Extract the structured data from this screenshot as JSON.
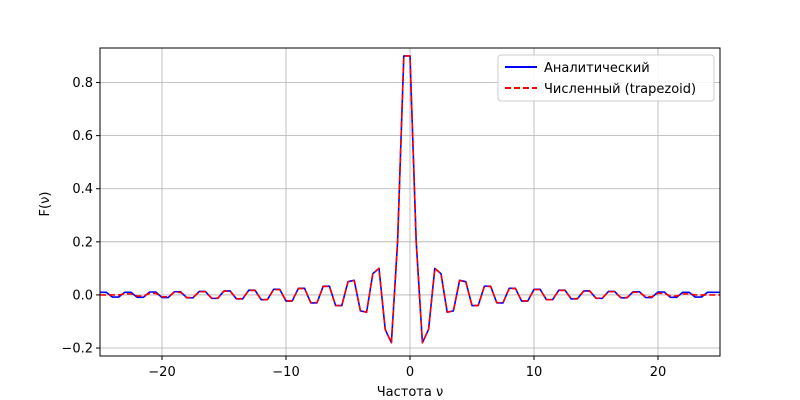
{
  "chart_data": {
    "type": "line",
    "title": "",
    "xlabel": "Частота ν",
    "ylabel": "F(ν)",
    "xlim": [
      -25,
      25
    ],
    "ylim": [
      -0.23,
      0.93
    ],
    "xticks": [
      -20,
      -10,
      0,
      10,
      20
    ],
    "xtick_labels": [
      "−20",
      "−10",
      "0",
      "10",
      "20"
    ],
    "yticks": [
      -0.2,
      0.0,
      0.2,
      0.4,
      0.6,
      0.8
    ],
    "ytick_labels": [
      "−0.2",
      "0.0",
      "0.2",
      "0.4",
      "0.6",
      "0.8"
    ],
    "grid": true,
    "legend_position": "top-right",
    "series": [
      {
        "name": "Аналитический",
        "color": "#0000ff",
        "style": "solid",
        "x": [
          -25,
          -24.5,
          -24,
          -23.5,
          -23,
          -22.5,
          -22,
          -21.5,
          -21,
          -20.5,
          -20,
          -19.5,
          -19,
          -18.5,
          -18,
          -17.5,
          -17,
          -16.5,
          -16,
          -15.5,
          -15,
          -14.5,
          -14,
          -13.5,
          -13,
          -12.5,
          -12,
          -11.5,
          -11,
          -10.5,
          -10,
          -9.5,
          -9,
          -8.5,
          -8,
          -7.5,
          -7,
          -6.5,
          -6,
          -5.5,
          -5,
          -4.5,
          -4,
          -3.5,
          -3,
          -2.5,
          -2,
          -1.5,
          -1,
          -0.5,
          0,
          0.5,
          1,
          1.5,
          2,
          2.5,
          3,
          3.5,
          4,
          4.5,
          5,
          5.5,
          6,
          6.5,
          7,
          7.5,
          8,
          8.5,
          9,
          9.5,
          10,
          10.5,
          11,
          11.5,
          12,
          12.5,
          13,
          13.5,
          14,
          14.5,
          15,
          15.5,
          16,
          16.5,
          17,
          17.5,
          18,
          18.5,
          19,
          19.5,
          20,
          20.5,
          21,
          21.5,
          22,
          22.5,
          23,
          23.5,
          24,
          24.5,
          25
        ],
        "y": [
          0.01,
          0.01,
          -0.008,
          -0.008,
          0.01,
          0.01,
          -0.009,
          -0.009,
          0.011,
          0.011,
          -0.01,
          -0.01,
          0.012,
          0.012,
          -0.011,
          -0.011,
          0.013,
          0.013,
          -0.013,
          -0.013,
          0.015,
          0.015,
          -0.015,
          -0.015,
          0.018,
          0.018,
          -0.018,
          -0.018,
          0.021,
          0.021,
          -0.023,
          -0.023,
          0.025,
          0.025,
          -0.03,
          -0.03,
          0.033,
          0.033,
          -0.04,
          -0.04,
          0.05,
          0.055,
          -0.06,
          -0.065,
          0.08,
          0.1,
          -0.13,
          -0.18,
          0.2,
          0.9,
          0.9,
          0.2,
          -0.18,
          -0.13,
          0.1,
          0.08,
          -0.065,
          -0.06,
          0.055,
          0.05,
          -0.04,
          -0.04,
          0.033,
          0.033,
          -0.03,
          -0.03,
          0.025,
          0.025,
          -0.023,
          -0.023,
          0.021,
          0.021,
          -0.018,
          -0.018,
          0.018,
          0.018,
          -0.015,
          -0.015,
          0.015,
          0.015,
          -0.013,
          -0.013,
          0.013,
          0.013,
          -0.011,
          -0.011,
          0.012,
          0.012,
          -0.01,
          -0.01,
          0.011,
          0.011,
          -0.009,
          -0.009,
          0.01,
          0.01,
          -0.008,
          -0.008,
          0.01,
          0.01,
          0.01
        ]
      },
      {
        "name": "Численный (trapezoid)",
        "color": "#ff0000",
        "style": "dashed",
        "x": [
          -25,
          -24.5,
          -24,
          -23.5,
          -23,
          -22.5,
          -22,
          -21.5,
          -21,
          -20.5,
          -20,
          -19.5,
          -19,
          -18.5,
          -18,
          -17.5,
          -17,
          -16.5,
          -16,
          -15.5,
          -15,
          -14.5,
          -14,
          -13.5,
          -13,
          -12.5,
          -12,
          -11.5,
          -11,
          -10.5,
          -10,
          -9.5,
          -9,
          -8.5,
          -8,
          -7.5,
          -7,
          -6.5,
          -6,
          -5.5,
          -5,
          -4.5,
          -4,
          -3.5,
          -3,
          -2.5,
          -2,
          -1.5,
          -1,
          -0.5,
          0,
          0.5,
          1,
          1.5,
          2,
          2.5,
          3,
          3.5,
          4,
          4.5,
          5,
          5.5,
          6,
          6.5,
          7,
          7.5,
          8,
          8.5,
          9,
          9.5,
          10,
          10.5,
          11,
          11.5,
          12,
          12.5,
          13,
          13.5,
          14,
          14.5,
          15,
          15.5,
          16,
          16.5,
          17,
          17.5,
          18,
          18.5,
          19,
          19.5,
          20,
          20.5,
          21,
          21.5,
          22,
          22.5,
          23,
          23.5,
          24,
          24.5,
          25
        ],
        "y": [
          0.0,
          0.0,
          0.0,
          0.0,
          0.004,
          0.004,
          -0.004,
          -0.004,
          0.006,
          0.006,
          -0.007,
          -0.007,
          0.01,
          0.01,
          -0.01,
          -0.01,
          0.012,
          0.012,
          -0.012,
          -0.012,
          0.014,
          0.014,
          -0.014,
          -0.014,
          0.017,
          0.017,
          -0.018,
          -0.018,
          0.02,
          0.02,
          -0.022,
          -0.022,
          0.024,
          0.024,
          -0.029,
          -0.029,
          0.032,
          0.032,
          -0.04,
          -0.04,
          0.05,
          0.054,
          -0.06,
          -0.065,
          0.08,
          0.1,
          -0.13,
          -0.18,
          0.2,
          0.9,
          0.9,
          0.2,
          -0.18,
          -0.13,
          0.1,
          0.08,
          -0.065,
          -0.06,
          0.054,
          0.05,
          -0.04,
          -0.04,
          0.032,
          0.032,
          -0.029,
          -0.029,
          0.024,
          0.024,
          -0.022,
          -0.022,
          0.02,
          0.02,
          -0.018,
          -0.018,
          0.017,
          0.017,
          -0.014,
          -0.014,
          0.014,
          0.014,
          -0.012,
          -0.012,
          0.012,
          0.012,
          -0.01,
          -0.01,
          0.01,
          0.01,
          -0.007,
          -0.007,
          0.006,
          0.006,
          -0.004,
          -0.004,
          0.004,
          0.004,
          0.0,
          0.0,
          0.0,
          0.0,
          0.0
        ]
      }
    ]
  }
}
